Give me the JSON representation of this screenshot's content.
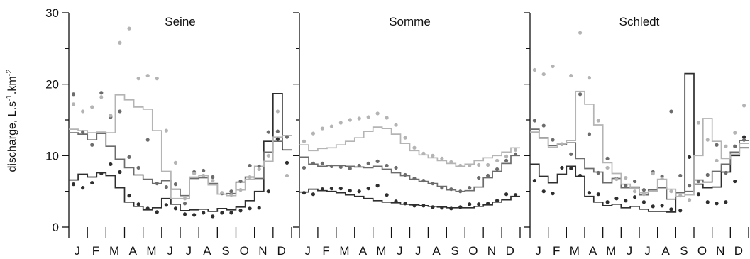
{
  "figure": {
    "ylabel": {
      "base": "discharge, L.s",
      "sup1": "-1",
      "mid": ".km",
      "sup2": "-2"
    },
    "yticks": [
      "0",
      "10",
      "20",
      "30"
    ],
    "months": [
      "J",
      "F",
      "M",
      "A",
      "M",
      "J",
      "J",
      "A",
      "S",
      "O",
      "N",
      "D"
    ]
  },
  "colors": {
    "dark": "#2e2e2e",
    "mid": "#6c6c6c",
    "light": "#b4b4b4",
    "axis": "#111111"
  },
  "chart_data": [
    {
      "type": "line",
      "title": "Seine",
      "x_unit": "month (fractional, 0 = start of January)",
      "ylim": [
        0,
        30
      ],
      "series": [
        {
          "shade": "dark",
          "kind": "step",
          "edges": [
            0,
            0.5,
            1,
            1.5,
            2,
            2.5,
            3,
            3.5,
            4,
            4.5,
            5,
            5.5,
            6,
            6.5,
            7,
            7.5,
            8,
            8.5,
            9,
            9.5,
            10,
            10.5,
            11,
            11.5,
            12
          ],
          "values": [
            6.6,
            7.4,
            7,
            7.6,
            7.2,
            5.5,
            3.5,
            2.9,
            2.4,
            2.7,
            4,
            3.2,
            2.3,
            2.4,
            2.5,
            2.2,
            2.6,
            2.4,
            2.8,
            3.7,
            5,
            12,
            18.7,
            10.8
          ]
        },
        {
          "shade": "mid",
          "kind": "step",
          "edges": [
            0,
            0.5,
            1,
            1.5,
            2,
            2.5,
            3,
            3.5,
            4,
            4.5,
            5,
            5.5,
            6,
            6.5,
            7,
            7.5,
            8,
            8.5,
            9,
            9.5,
            10,
            10.5,
            11,
            11.5,
            12
          ],
          "values": [
            13.2,
            13,
            12.2,
            13.1,
            11.3,
            9.5,
            8.3,
            7.3,
            6.7,
            6.1,
            6.5,
            5.3,
            4.4,
            6.8,
            6.9,
            6.1,
            4.6,
            4.7,
            6.3,
            7,
            6.8,
            10.5,
            12,
            12.8
          ]
        },
        {
          "shade": "light",
          "kind": "step",
          "edges": [
            0,
            0.5,
            1,
            1.5,
            2,
            2.5,
            3,
            3.5,
            4,
            4.5,
            5,
            5.5,
            6,
            6.5,
            7,
            7.5,
            8,
            8.5,
            9,
            9.5,
            10,
            10.5,
            11,
            11.5,
            12
          ],
          "values": [
            13.7,
            13.5,
            13.2,
            13.3,
            13.2,
            18.5,
            17.8,
            16.8,
            16.5,
            13.5,
            7.8,
            4,
            4,
            7,
            7.2,
            5.9,
            4.6,
            4.4,
            5.2,
            6.7,
            8.5,
            9.2,
            12.6,
            12.8
          ]
        },
        {
          "shade": "dark",
          "kind": "points",
          "x": [
            0.25,
            0.75,
            1.25,
            1.75,
            2.25,
            2.75,
            3.25,
            3.75,
            4.25,
            4.75,
            5.25,
            5.75,
            6.25,
            6.75,
            7.25,
            7.75,
            8.25,
            8.75,
            9.25,
            9.75,
            10.25,
            10.75,
            11.25,
            11.75
          ],
          "y": [
            6,
            5.5,
            6.2,
            7.5,
            8.8,
            7.7,
            4.4,
            3.2,
            2.6,
            2.1,
            3.1,
            2.6,
            1.8,
            1.7,
            2,
            1.5,
            2,
            2,
            2.3,
            2.6,
            2.7,
            5,
            12.3,
            9
          ]
        },
        {
          "shade": "mid",
          "kind": "points",
          "x": [
            0.25,
            0.75,
            1.25,
            1.75,
            2.25,
            2.75,
            3.25,
            3.75,
            4.25,
            4.75,
            5.25,
            5.75,
            6.25,
            6.75,
            7.25,
            7.75,
            8.25,
            8.75,
            9.25,
            9.75,
            10.25,
            10.75,
            11.25,
            11.75
          ],
          "y": [
            18.6,
            13.3,
            11.5,
            18.8,
            15.4,
            16.2,
            9.8,
            8.3,
            12.2,
            6.1,
            5.6,
            6,
            3.3,
            7.7,
            7.9,
            7,
            4.7,
            5,
            6.4,
            8.6,
            8.5,
            13.3,
            13.4,
            12.6
          ]
        },
        {
          "shade": "light",
          "kind": "points",
          "x": [
            0.25,
            0.75,
            1.25,
            1.75,
            2.25,
            2.75,
            3.25,
            3.75,
            4.25,
            4.75,
            5.25,
            5.75,
            6.25,
            6.75,
            7.25,
            7.75,
            8.25,
            8.75,
            9.25,
            9.75,
            10.25,
            10.75,
            11.25,
            11.75
          ],
          "y": [
            17.2,
            16.2,
            16.8,
            18.2,
            15.6,
            25.8,
            27.8,
            20.8,
            21.2,
            20.8,
            13.5,
            9,
            4,
            7.5,
            7.2,
            6.5,
            4.8,
            4.5,
            5.2,
            7,
            8.1,
            10,
            16.2,
            7.2
          ]
        }
      ]
    },
    {
      "type": "line",
      "title": "Somme",
      "x_unit": "month (fractional, 0 = start of January)",
      "ylim": [
        0,
        30
      ],
      "series": [
        {
          "shade": "dark",
          "kind": "step",
          "edges": [
            0,
            0.5,
            1,
            1.5,
            2,
            2.5,
            3,
            3.5,
            4,
            4.5,
            5,
            5.5,
            6,
            6.5,
            7,
            7.5,
            8,
            8.5,
            9,
            9.5,
            10,
            10.5,
            11,
            11.5,
            12
          ],
          "values": [
            4.9,
            5.3,
            5.1,
            5,
            4.8,
            4.5,
            4.3,
            4,
            3.7,
            3.5,
            3.4,
            3.2,
            3.1,
            3,
            2.9,
            2.8,
            2.7,
            2.7,
            2.7,
            2.9,
            3.1,
            3.5,
            3.8,
            4.3
          ]
        },
        {
          "shade": "mid",
          "kind": "step",
          "edges": [
            0,
            0.5,
            1,
            1.5,
            2,
            2.5,
            3,
            3.5,
            4,
            4.5,
            5,
            5.5,
            6,
            6.5,
            7,
            7.5,
            8,
            8.5,
            9,
            9.5,
            10,
            10.5,
            11,
            11.5,
            12
          ],
          "values": [
            9.8,
            8.8,
            8.5,
            8.6,
            8.6,
            8.5,
            8.4,
            8.3,
            8.5,
            8.1,
            7.6,
            7.2,
            6.7,
            6.4,
            6.1,
            5.7,
            5.2,
            5,
            5.1,
            5.6,
            6.9,
            7.8,
            8.9,
            10
          ]
        },
        {
          "shade": "light",
          "kind": "step",
          "edges": [
            0,
            0.5,
            1,
            1.5,
            2,
            2.5,
            3,
            3.5,
            4,
            4.5,
            5,
            5.5,
            6,
            6.5,
            7,
            7.5,
            8,
            8.5,
            9,
            9.5,
            10,
            10.5,
            11,
            11.5,
            12
          ],
          "values": [
            11.5,
            10.7,
            11,
            11.1,
            11.5,
            12,
            12.5,
            13.4,
            14,
            13.8,
            13,
            11.7,
            10.7,
            10.1,
            9.7,
            9.3,
            8.9,
            8.5,
            8.8,
            9.3,
            9.7,
            10,
            10.5,
            11.1
          ]
        },
        {
          "shade": "dark",
          "kind": "points",
          "x": [
            0.25,
            0.75,
            1.25,
            1.75,
            2.25,
            2.75,
            3.25,
            3.75,
            4.25,
            4.75,
            5.25,
            5.75,
            6.25,
            6.75,
            7.25,
            7.75,
            8.25,
            8.75,
            9.25,
            9.75,
            10.25,
            10.75,
            11.25,
            11.75
          ],
          "y": [
            4.8,
            4.6,
            5.3,
            5.4,
            5.4,
            5.1,
            5,
            5.4,
            5.8,
            4.5,
            3.6,
            3.3,
            3,
            3,
            2.8,
            2.7,
            2.6,
            2.8,
            3.2,
            3.2,
            3.3,
            3.7,
            4.6,
            4.5
          ]
        },
        {
          "shade": "mid",
          "kind": "points",
          "x": [
            0.25,
            0.75,
            1.25,
            1.75,
            2.25,
            2.75,
            3.25,
            3.75,
            4.25,
            4.75,
            5.25,
            5.75,
            6.25,
            6.75,
            7.25,
            7.75,
            8.25,
            8.75,
            9.25,
            9.75,
            10.25,
            10.75,
            11.25,
            11.75
          ],
          "y": [
            8.3,
            8.9,
            8.9,
            8.5,
            8.4,
            8.2,
            8.6,
            8.9,
            9.2,
            8.6,
            8.3,
            7.3,
            6.8,
            6.5,
            6.1,
            5.5,
            5.3,
            5,
            5.5,
            6.9,
            7.2,
            8.1,
            9.3,
            10.2
          ]
        },
        {
          "shade": "light",
          "kind": "points",
          "x": [
            0.25,
            0.75,
            1.25,
            1.75,
            2.25,
            2.75,
            3.25,
            3.75,
            4.25,
            4.75,
            5.25,
            5.75,
            6.25,
            6.75,
            7.25,
            7.75,
            8.25,
            8.75,
            9.25,
            9.75,
            10.25,
            10.75,
            11.25,
            11.75
          ],
          "y": [
            12,
            13.1,
            13.8,
            14.1,
            14.6,
            15,
            15.2,
            15.4,
            15.9,
            15.3,
            14.3,
            12.5,
            11.1,
            10.3,
            10,
            9.6,
            9.1,
            8.6,
            8.6,
            8.7,
            8.7,
            9.3,
            9.9,
            10.8
          ]
        }
      ]
    },
    {
      "type": "line",
      "title": "Schledt",
      "x_unit": "month (fractional, 0 = start of January)",
      "ylim": [
        0,
        30
      ],
      "series": [
        {
          "shade": "dark",
          "kind": "step",
          "edges": [
            0,
            0.5,
            1,
            1.5,
            2,
            2.5,
            3,
            3.5,
            4,
            4.5,
            5,
            5.5,
            6,
            6.5,
            7,
            7.5,
            8,
            8.5,
            9,
            9.5,
            10,
            10.5,
            11,
            11.5,
            12
          ],
          "values": [
            8.8,
            7.1,
            6.2,
            7.4,
            8.5,
            7.1,
            4.3,
            3.5,
            3,
            3.2,
            2.7,
            2.9,
            2.5,
            2.2,
            2.2,
            2.1,
            4.8,
            21.5,
            6,
            5.5,
            5.6,
            7.7,
            10,
            11.1
          ]
        },
        {
          "shade": "mid",
          "kind": "step",
          "edges": [
            0,
            0.5,
            1,
            1.5,
            2,
            2.5,
            3,
            3.5,
            4,
            4.5,
            5,
            5.5,
            6,
            6.5,
            7,
            7.5,
            8,
            8.5,
            9,
            9.5,
            10,
            10.5,
            11,
            11.5,
            12
          ],
          "values": [
            13.7,
            12.5,
            11.4,
            11.5,
            11.8,
            9.6,
            8.2,
            7.7,
            6.2,
            6.8,
            5.5,
            5.6,
            4.5,
            5.2,
            5.5,
            3.9,
            4.8,
            5,
            6.6,
            6.3,
            7.8,
            8.8,
            10.5,
            12.1
          ]
        },
        {
          "shade": "light",
          "kind": "step",
          "edges": [
            0,
            0.5,
            1,
            1.5,
            2,
            2.5,
            3,
            3.5,
            4,
            4.5,
            5,
            5.5,
            6,
            6.5,
            7,
            7.5,
            8,
            8.5,
            9,
            9.5,
            10,
            10.5,
            11,
            11.5,
            12
          ],
          "values": [
            13.3,
            12.4,
            11.2,
            11.7,
            12.1,
            19,
            17.2,
            14.3,
            9,
            7.5,
            6,
            5.4,
            4.8,
            5,
            6.7,
            5.3,
            4.3,
            4.5,
            10,
            15.2,
            12,
            9.6,
            10.2,
            11.7
          ]
        },
        {
          "shade": "dark",
          "kind": "points",
          "x": [
            0.25,
            0.75,
            1.25,
            1.75,
            2.25,
            2.75,
            3.25,
            3.75,
            4.25,
            4.75,
            5.25,
            5.75,
            6.25,
            6.75,
            7.25,
            7.75,
            8.25,
            8.75,
            9.25,
            9.75,
            10.25,
            10.75,
            11.25,
            11.75
          ],
          "y": [
            6.5,
            5,
            4.7,
            8.3,
            8.2,
            7.2,
            4.8,
            4.6,
            3.5,
            4,
            3.7,
            4.2,
            3.5,
            2.9,
            3,
            2.5,
            2.3,
            9.8,
            4.6,
            3.5,
            3.3,
            3.5,
            6.4,
            12.6
          ]
        },
        {
          "shade": "mid",
          "kind": "points",
          "x": [
            0.25,
            0.75,
            1.25,
            1.75,
            2.25,
            2.75,
            3.25,
            3.75,
            4.25,
            4.75,
            5.25,
            5.75,
            6.25,
            6.75,
            7.25,
            7.75,
            8.25,
            8.75,
            9.25,
            9.75,
            10.25,
            10.75,
            11.25,
            11.75
          ],
          "y": [
            14.9,
            14.2,
            12.2,
            11.6,
            10.2,
            18.6,
            13,
            7.6,
            9.6,
            6.8,
            5.8,
            6.4,
            5.2,
            7.7,
            7.1,
            16.2,
            7.2,
            5.8,
            6.4,
            7.3,
            11.5,
            7.6,
            11.3,
            12.2
          ]
        },
        {
          "shade": "light",
          "kind": "points",
          "x": [
            0.25,
            0.75,
            1.25,
            1.75,
            2.25,
            2.75,
            3.25,
            3.75,
            4.25,
            4.75,
            5.25,
            5.75,
            6.25,
            6.75,
            7.25,
            7.75,
            8.25,
            8.75,
            9.25,
            9.75,
            10.25,
            10.75,
            11.25,
            11.75
          ],
          "y": [
            22,
            21.4,
            22.5,
            11.6,
            21.2,
            27.2,
            20.9,
            14.9,
            8.3,
            6.7,
            6.9,
            5,
            4.6,
            7.5,
            6.8,
            5,
            4.4,
            3.8,
            14.6,
            12.2,
            9.3,
            11.3,
            13.2,
            17
          ]
        }
      ]
    }
  ]
}
